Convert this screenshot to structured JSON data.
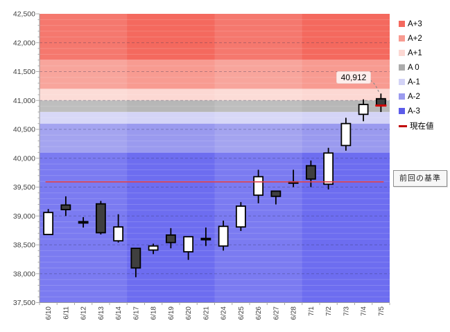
{
  "chart_data": {
    "type": "candlestick",
    "title": "",
    "y_axis": {
      "min": 37500,
      "max": 42500,
      "major_step": 500,
      "minor_step": 100,
      "tick_labels": [
        "37,500",
        "38,000",
        "38,500",
        "39,000",
        "39,500",
        "40,000",
        "40,500",
        "41,000",
        "41,500",
        "42,000",
        "42,500"
      ]
    },
    "x_categories": [
      "6/10",
      "6/11",
      "6/12",
      "6/13",
      "6/14",
      "6/17",
      "6/18",
      "6/19",
      "6/20",
      "6/21",
      "6/24",
      "6/25",
      "6/26",
      "6/27",
      "6/28",
      "7/1",
      "7/2",
      "7/3",
      "7/4",
      "7/5"
    ],
    "week_groups": [
      {
        "start": 0,
        "end": 4,
        "shade": "light"
      },
      {
        "start": 5,
        "end": 9,
        "shade": "dark"
      },
      {
        "start": 10,
        "end": 14,
        "shade": "light"
      },
      {
        "start": 15,
        "end": 19,
        "shade": "dark"
      }
    ],
    "bands": [
      {
        "label": "A+3",
        "from": 41700,
        "to": 42500,
        "color": "#f4695e"
      },
      {
        "label": "A+2",
        "from": 41200,
        "to": 41700,
        "color": "#f89b91"
      },
      {
        "label": "A+1",
        "from": 41000,
        "to": 41200,
        "color": "#fcd8d3"
      },
      {
        "label": "A 0",
        "from": 40800,
        "to": 41000,
        "color": "#b7b7b7"
      },
      {
        "label": "A-1",
        "from": 40600,
        "to": 40800,
        "color": "#d4d4f7"
      },
      {
        "label": "A-2",
        "from": 40100,
        "to": 40600,
        "color": "#9a9aef"
      },
      {
        "label": "A-3",
        "from": 37500,
        "to": 40100,
        "color": "#6d6df0"
      }
    ],
    "candles": [
      {
        "date": "6/10",
        "open": 38680,
        "high": 39120,
        "low": 38680,
        "close": 39060,
        "fill": "white"
      },
      {
        "date": "6/11",
        "open": 39190,
        "high": 39340,
        "low": 39000,
        "close": 39110,
        "fill": "dark"
      },
      {
        "date": "6/12",
        "open": 38890,
        "high": 38980,
        "low": 38800,
        "close": 38890,
        "fill": "dark"
      },
      {
        "date": "6/13",
        "open": 39210,
        "high": 39260,
        "low": 38680,
        "close": 38710,
        "fill": "dark"
      },
      {
        "date": "6/14",
        "open": 38570,
        "high": 39030,
        "low": 38540,
        "close": 38810,
        "fill": "white"
      },
      {
        "date": "6/17",
        "open": 38440,
        "high": 38440,
        "low": 37940,
        "close": 38100,
        "fill": "dark"
      },
      {
        "date": "6/18",
        "open": 38410,
        "high": 38520,
        "low": 38340,
        "close": 38480,
        "fill": "white"
      },
      {
        "date": "6/19",
        "open": 38670,
        "high": 38790,
        "low": 38440,
        "close": 38540,
        "fill": "dark"
      },
      {
        "date": "6/20",
        "open": 38380,
        "high": 38640,
        "low": 38240,
        "close": 38640,
        "fill": "white"
      },
      {
        "date": "6/21",
        "open": 38600,
        "high": 38800,
        "low": 38480,
        "close": 38600,
        "fill": "dark"
      },
      {
        "date": "6/24",
        "open": 38480,
        "high": 38920,
        "low": 38400,
        "close": 38820,
        "fill": "white"
      },
      {
        "date": "6/25",
        "open": 38810,
        "high": 39240,
        "low": 38740,
        "close": 39170,
        "fill": "white"
      },
      {
        "date": "6/26",
        "open": 39360,
        "high": 39800,
        "low": 39220,
        "close": 39680,
        "fill": "white"
      },
      {
        "date": "6/27",
        "open": 39430,
        "high": 39430,
        "low": 39200,
        "close": 39340,
        "fill": "dark"
      },
      {
        "date": "6/28",
        "open": 39580,
        "high": 39800,
        "low": 39500,
        "close": 39580,
        "fill": "dark"
      },
      {
        "date": "7/1",
        "open": 39870,
        "high": 39960,
        "low": 39500,
        "close": 39640,
        "fill": "dark"
      },
      {
        "date": "7/2",
        "open": 39550,
        "high": 40180,
        "low": 39460,
        "close": 40090,
        "fill": "white"
      },
      {
        "date": "7/3",
        "open": 40220,
        "high": 40700,
        "low": 40130,
        "close": 40600,
        "fill": "white"
      },
      {
        "date": "7/4",
        "open": 40760,
        "high": 41020,
        "low": 40640,
        "close": 40930,
        "fill": "white"
      },
      {
        "date": "7/5",
        "open": 41030,
        "high": 41120,
        "low": 40800,
        "close": 40912,
        "fill": "dark"
      }
    ],
    "baseline": {
      "value": 39590,
      "color": "#e0404a",
      "label": "前回の基準"
    },
    "current_value": {
      "value": 40912,
      "label": "40,912",
      "date": "7/5",
      "color": "#d40000"
    },
    "legend": {
      "items": [
        {
          "label": "A+3",
          "color": "#f4695e",
          "swatch": "square"
        },
        {
          "label": "A+2",
          "color": "#f89b91",
          "swatch": "square"
        },
        {
          "label": "A+1",
          "color": "#fcd8d3",
          "swatch": "square"
        },
        {
          "label": "A 0",
          "color": "#ababab",
          "swatch": "square"
        },
        {
          "label": "A-1",
          "color": "#d3d3f6",
          "swatch": "square"
        },
        {
          "label": "A-2",
          "color": "#9b9bef",
          "swatch": "square"
        },
        {
          "label": "A-3",
          "color": "#5c5cea",
          "swatch": "square"
        },
        {
          "label": "現在値",
          "color": "#c00000",
          "swatch": "dash"
        }
      ]
    },
    "grid": {
      "major_dashed": true,
      "minor_light": true
    },
    "legend_position": "right"
  }
}
